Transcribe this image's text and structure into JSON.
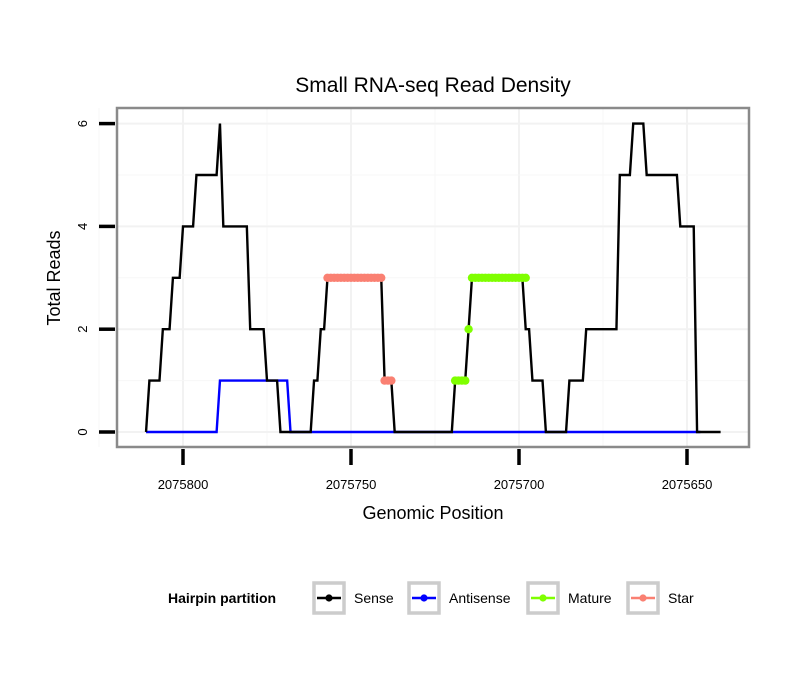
{
  "chart_data": {
    "type": "line",
    "title": "Small RNA-seq Read Density",
    "xlabel": "Genomic Position",
    "ylabel": "Total Reads",
    "x_reversed": true,
    "xlim": [
      2075640,
      2075811
    ],
    "ylim": [
      0,
      6
    ],
    "x_ticks": [
      2075800,
      2075750,
      2075700,
      2075650
    ],
    "x_tick_labels": [
      "2075800",
      "2075750",
      "2075700",
      "2075650"
    ],
    "y_ticks": [
      0,
      2,
      4,
      6
    ],
    "y_tick_labels": [
      "0",
      "2",
      "4",
      "6"
    ],
    "grid": true,
    "legend": {
      "title": "Hairpin partition",
      "placement": "bottom",
      "entries": [
        {
          "name": "Sense",
          "color": "#000000"
        },
        {
          "name": "Antisense",
          "color": "#0000ff"
        },
        {
          "name": "Mature",
          "color": "#7fff00"
        },
        {
          "name": "Star",
          "color": "#fa8072"
        }
      ]
    },
    "series": [
      {
        "name": "Sense",
        "color": "#000000",
        "style": "line",
        "segments": [
          {
            "from": 2075811,
            "to": 2075811,
            "value": 0
          },
          {
            "from": 2075810,
            "to": 2075807,
            "value": 1
          },
          {
            "from": 2075806,
            "to": 2075804,
            "value": 2
          },
          {
            "from": 2075803,
            "to": 2075801,
            "value": 3
          },
          {
            "from": 2075800,
            "to": 2075797,
            "value": 4
          },
          {
            "from": 2075796,
            "to": 2075790,
            "value": 5
          },
          {
            "from": 2075789,
            "to": 2075789,
            "value": 6
          },
          {
            "from": 2075788,
            "to": 2075781,
            "value": 4
          },
          {
            "from": 2075780,
            "to": 2075776,
            "value": 2
          },
          {
            "from": 2075775,
            "to": 2075772,
            "value": 1
          },
          {
            "from": 2075771,
            "to": 2075762,
            "value": 0
          },
          {
            "from": 2075761,
            "to": 2075760,
            "value": 1
          },
          {
            "from": 2075759,
            "to": 2075758,
            "value": 2
          },
          {
            "from": 2075757,
            "to": 2075741,
            "value": 3
          },
          {
            "from": 2075740,
            "to": 2075738,
            "value": 1
          },
          {
            "from": 2075737,
            "to": 2075720,
            "value": 0
          },
          {
            "from": 2075719,
            "to": 2075716,
            "value": 1
          },
          {
            "from": 2075715,
            "to": 2075715,
            "value": 2
          },
          {
            "from": 2075714,
            "to": 2075699,
            "value": 3
          },
          {
            "from": 2075698,
            "to": 2075697,
            "value": 2
          },
          {
            "from": 2075696,
            "to": 2075693,
            "value": 1
          },
          {
            "from": 2075692,
            "to": 2075686,
            "value": 0
          },
          {
            "from": 2075685,
            "to": 2075681,
            "value": 1
          },
          {
            "from": 2075680,
            "to": 2075671,
            "value": 2
          },
          {
            "from": 2075670,
            "to": 2075667,
            "value": 5
          },
          {
            "from": 2075666,
            "to": 2075663,
            "value": 6
          },
          {
            "from": 2075662,
            "to": 2075653,
            "value": 5
          },
          {
            "from": 2075652,
            "to": 2075648,
            "value": 4
          },
          {
            "from": 2075647,
            "to": 2075640,
            "value": 0
          }
        ]
      },
      {
        "name": "Antisense",
        "color": "#0000ff",
        "style": "line",
        "segments": [
          {
            "from": 2075811,
            "to": 2075790,
            "value": 0
          },
          {
            "from": 2075789,
            "to": 2075769,
            "value": 1
          },
          {
            "from": 2075768,
            "to": 2075646,
            "value": 0
          }
        ]
      },
      {
        "name": "Mature",
        "color": "#7fff00",
        "style": "points",
        "segments": [
          {
            "from": 2075719,
            "to": 2075716,
            "value": 1
          },
          {
            "from": 2075715,
            "to": 2075715,
            "value": 2
          },
          {
            "from": 2075714,
            "to": 2075698,
            "value": 3
          }
        ]
      },
      {
        "name": "Star",
        "color": "#fa8072",
        "style": "points",
        "segments": [
          {
            "from": 2075757,
            "to": 2075741,
            "value": 3
          },
          {
            "from": 2075740,
            "to": 2075738,
            "value": 1
          }
        ]
      }
    ]
  }
}
